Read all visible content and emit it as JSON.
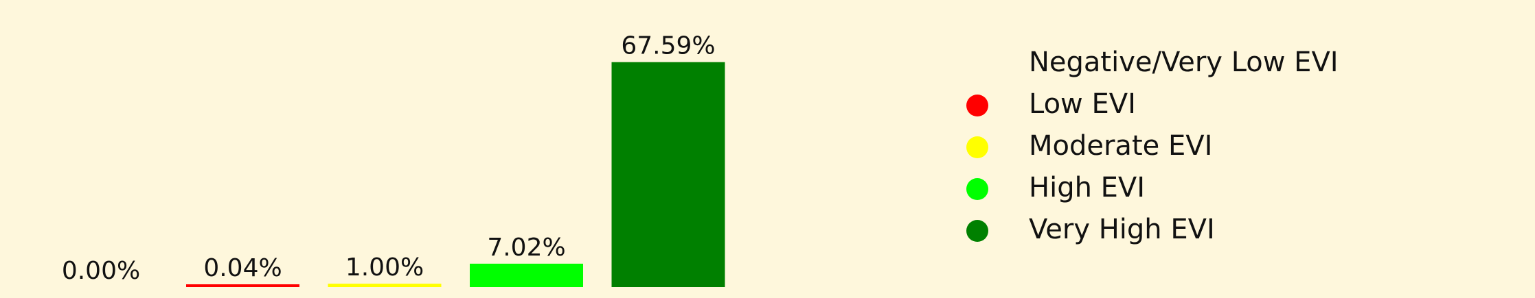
{
  "chart_data": {
    "type": "bar",
    "categories": [
      "Negative/Very Low EVI",
      "Low EVI",
      "Moderate EVI",
      "High EVI",
      "Very High EVI"
    ],
    "values": [
      0.0,
      0.04,
      1.0,
      7.02,
      67.59
    ],
    "labels": [
      "0.00%",
      "0.04%",
      "1.00%",
      "7.02%",
      "67.59%"
    ],
    "colors": [
      "#fef7dc",
      "#ff0000",
      "#ffff00",
      "#00ff00",
      "#008000"
    ],
    "ylim": [
      0,
      70
    ],
    "grid": false,
    "legend_position": "right",
    "title": "",
    "xlabel": "",
    "ylabel": ""
  }
}
